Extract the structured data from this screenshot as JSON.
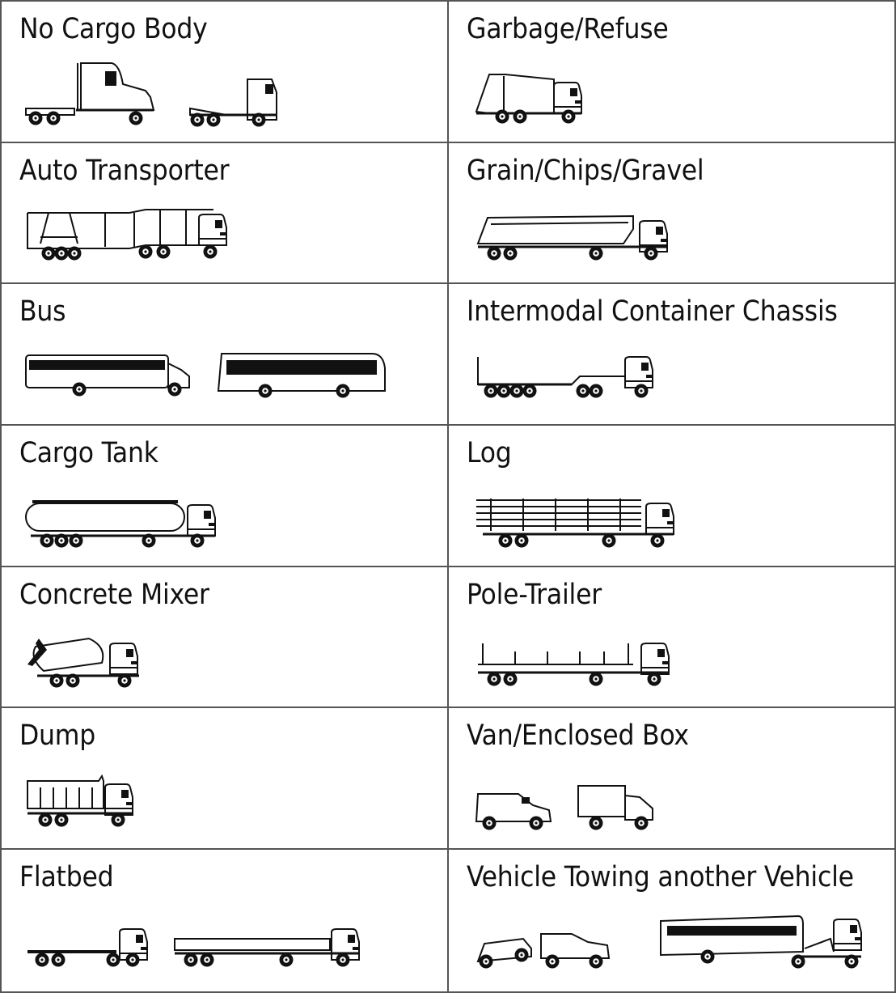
{
  "categories": [
    {
      "label": "No Cargo Body"
    },
    {
      "label": "Garbage/Refuse"
    },
    {
      "label": "Auto Transporter"
    },
    {
      "label": "Grain/Chips/Gravel"
    },
    {
      "label": "Bus"
    },
    {
      "label": "Intermodal Container Chassis"
    },
    {
      "label": "Cargo Tank"
    },
    {
      "label": "Log"
    },
    {
      "label": "Concrete Mixer"
    },
    {
      "label": "Pole-Trailer"
    },
    {
      "label": "Dump"
    },
    {
      "label": "Van/Enclosed Box"
    },
    {
      "label": "Flatbed"
    },
    {
      "label": "Vehicle Towing another Vehicle"
    }
  ]
}
